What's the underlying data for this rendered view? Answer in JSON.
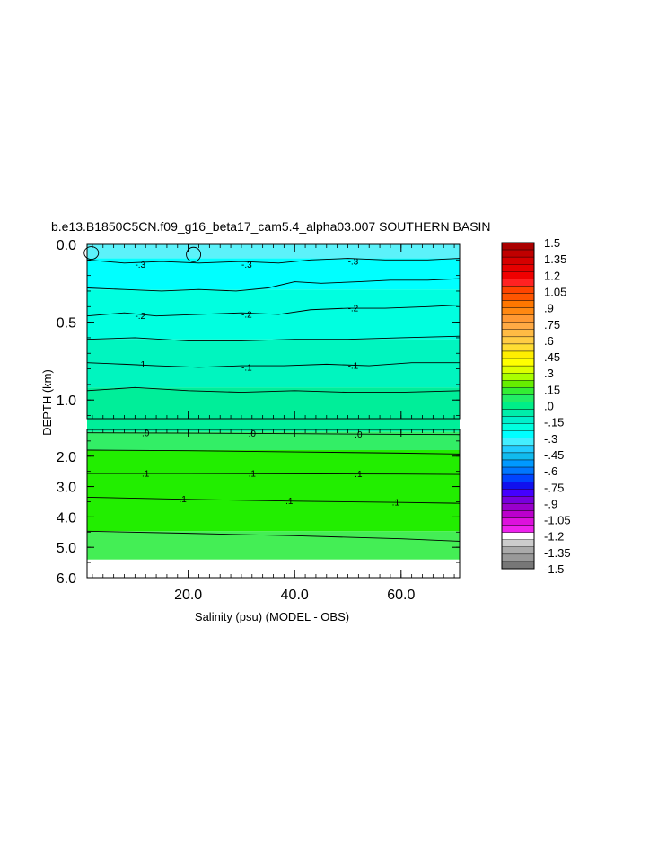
{
  "chart_data": {
    "type": "heatmap",
    "title": "b.e13.B1850C5CN.f09_g16_beta17_cam5.4_alpha03.007 SOUTHERN BASIN",
    "xlabel": "Salinity (psu) (MODEL - OBS)",
    "ylabel": "DEPTH (km)",
    "x_ticks": [
      "20.0",
      "40.0",
      "60.0"
    ],
    "x_tick_values": [
      20,
      40,
      60
    ],
    "xlim": [
      1,
      71
    ],
    "upper_panel": {
      "ylim": [
        0,
        1.12
      ],
      "y_ticks": [
        "0.0",
        "0.5",
        "1.0"
      ],
      "y_tick_values": [
        0.0,
        0.5,
        1.0
      ]
    },
    "lower_panel": {
      "ylim": [
        1.12,
        6.0
      ],
      "y_ticks": [
        "2.0",
        "3.0",
        "4.0",
        "5.0",
        "6.0"
      ],
      "y_tick_values": [
        2.0,
        3.0,
        4.0,
        5.0,
        6.0
      ],
      "data_bottom": 5.4
    },
    "contour_levels": [
      -0.3,
      -0.2,
      -0.1,
      0.0,
      0.1
    ],
    "contour_labels": [
      {
        "text": "-.3",
        "x": 11,
        "y": 0.13
      },
      {
        "text": "-.3",
        "x": 31,
        "y": 0.13
      },
      {
        "text": "-.3",
        "x": 51,
        "y": 0.11
      },
      {
        "text": "-.2",
        "x": 11,
        "y": 0.46
      },
      {
        "text": "-.2",
        "x": 31,
        "y": 0.45
      },
      {
        "text": "-.2",
        "x": 51,
        "y": 0.41
      },
      {
        "text": "-.1",
        "x": 11,
        "y": 0.77
      },
      {
        "text": "-.1",
        "x": 31,
        "y": 0.79
      },
      {
        "text": "-.1",
        "x": 51,
        "y": 0.78
      },
      {
        "text": ".0",
        "x": 12,
        "y": 1.24
      },
      {
        "text": ".0",
        "x": 32,
        "y": 1.26
      },
      {
        "text": ".0",
        "x": 52,
        "y": 1.28
      },
      {
        "text": ".1",
        "x": 12,
        "y": 2.57
      },
      {
        "text": ".1",
        "x": 32,
        "y": 2.57
      },
      {
        "text": ".1",
        "x": 52,
        "y": 2.58
      },
      {
        "text": ".1",
        "x": 19,
        "y": 3.41
      },
      {
        "text": ".1",
        "x": 39,
        "y": 3.47
      },
      {
        "text": ".1",
        "x": 59,
        "y": 3.51
      }
    ],
    "bands": [
      {
        "from": 0.0,
        "to": 0.09,
        "color": "#5cf2fa"
      },
      {
        "from": 0.09,
        "to": 0.29,
        "color": "#00ffff"
      },
      {
        "from": 0.29,
        "to": 0.61,
        "color": "#00ffe0"
      },
      {
        "from": 0.61,
        "to": 0.92,
        "color": "#00f5bf"
      },
      {
        "from": 0.92,
        "to": 1.12,
        "color": "#00ee99"
      },
      {
        "from": 1.12,
        "to": 1.2,
        "color": "#00ee99"
      },
      {
        "from": 1.2,
        "to": 1.8,
        "color": "#33ee66"
      },
      {
        "from": 1.8,
        "to": 4.47,
        "color": "#22ee00"
      },
      {
        "from": 4.47,
        "to": 5.4,
        "color": "#44ee55"
      }
    ],
    "colorbar": {
      "labels": [
        "1.5",
        "1.35",
        "1.2",
        "1.05",
        ".9",
        ".75",
        ".6",
        ".45",
        ".3",
        ".15",
        ".0",
        "-.15",
        "-.3",
        "-.45",
        "-.6",
        "-.75",
        "-.9",
        "-1.05",
        "-1.2",
        "-1.35",
        "-1.5"
      ],
      "colors": [
        "#aa0000",
        "#c00000",
        "#d60000",
        "#e60000",
        "#f00000",
        "#ff2222",
        "#ff4400",
        "#ff5500",
        "#ff7700",
        "#ff8811",
        "#ff9933",
        "#ffaa44",
        "#ffbb44",
        "#ffcc44",
        "#ffdd33",
        "#ffee00",
        "#ffff00",
        "#ddff00",
        "#aaff00",
        "#66ee00",
        "#33ee33",
        "#22ee66",
        "#00ee88",
        "#00eeaa",
        "#00f0cc",
        "#00ffe0",
        "#00ffff",
        "#44eeff",
        "#22ccff",
        "#11bbee",
        "#0099ff",
        "#0077ff",
        "#0044ff",
        "#1111ee",
        "#4400ff",
        "#7700dd",
        "#9900cc",
        "#bb00cc",
        "#dd11dd",
        "#ee22ee",
        "#ffffff",
        "#cccccc",
        "#aaaaaa",
        "#999999",
        "#777777"
      ]
    }
  }
}
